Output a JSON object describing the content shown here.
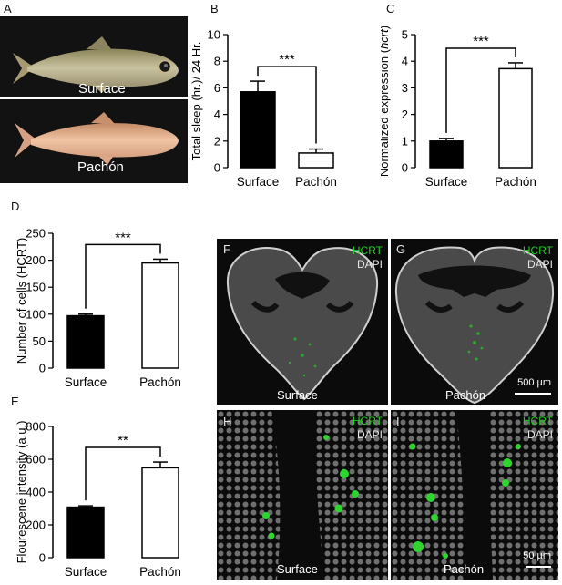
{
  "panels": {
    "A": "A",
    "B": "B",
    "C": "C",
    "D": "D",
    "E": "E",
    "F": "F",
    "G": "G",
    "H": "H",
    "I": "I"
  },
  "fish_photos": {
    "top_label": "Surface",
    "bottom_label": "Pachón"
  },
  "micrographs": {
    "stain_1": "HCRT",
    "stain_2": "DAPI",
    "F_caption": "Surface",
    "G_caption": "Pachón",
    "H_caption": "Surface",
    "I_caption": "Pachón",
    "scale_G": "500 µm",
    "scale_I": "50 µm",
    "colors": {
      "hcrt": "#22cc22",
      "dapi": "#e6e6e6",
      "background": "#0b0b0b"
    }
  },
  "chart_data": [
    {
      "panel": "B",
      "type": "bar",
      "categories": [
        "Surface",
        "Pachón"
      ],
      "values": [
        5.7,
        1.1
      ],
      "errors": [
        0.8,
        0.3
      ],
      "fills": [
        "#000000",
        "#ffffff"
      ],
      "ylabel": "Total sleep (hr.)/ 24  Hr.",
      "ylim": [
        0,
        10
      ],
      "yticks": [
        "0",
        "2",
        "4",
        "6",
        "8",
        "10"
      ],
      "significance": "***"
    },
    {
      "panel": "C",
      "type": "bar",
      "categories": [
        "Surface",
        "Pachón"
      ],
      "values": [
        1.0,
        3.72
      ],
      "errors": [
        0.1,
        0.22
      ],
      "fills": [
        "#000000",
        "#ffffff"
      ],
      "ylabel": "Normalized expression (hcrt)",
      "ylim": [
        0,
        5
      ],
      "yticks": [
        "0",
        "1",
        "2",
        "3",
        "4",
        "5"
      ],
      "significance": "***"
    },
    {
      "panel": "D",
      "type": "bar",
      "categories": [
        "Surface",
        "Pachón"
      ],
      "values": [
        97,
        195
      ],
      "errors": [
        3,
        7
      ],
      "fills": [
        "#000000",
        "#ffffff"
      ],
      "ylabel": "Number of cells (HCRT)",
      "ylim": [
        0,
        250
      ],
      "yticks": [
        "0",
        "50",
        "100",
        "150",
        "200",
        "250"
      ],
      "significance": "***"
    },
    {
      "panel": "E",
      "type": "bar",
      "categories": [
        "Surface",
        "Pachón"
      ],
      "values": [
        308,
        548
      ],
      "errors": [
        8,
        35
      ],
      "fills": [
        "#000000",
        "#ffffff"
      ],
      "ylabel": "Flourescene intensity (a.u.)",
      "ylim": [
        0,
        800
      ],
      "yticks": [
        "0",
        "200",
        "400",
        "600",
        "800"
      ],
      "significance": "**"
    }
  ]
}
